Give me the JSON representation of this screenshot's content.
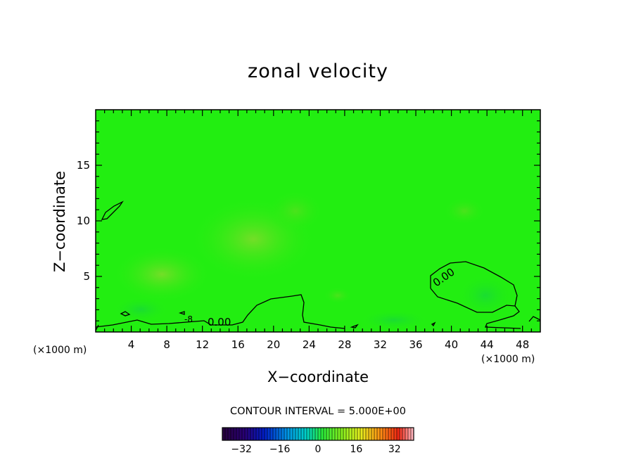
{
  "chart_data": {
    "type": "heatmap",
    "title": "zonal velocity",
    "xlabel": "X−coordinate",
    "ylabel": "Z−coordinate",
    "x_unit": "(×1000 m)",
    "xlim": [
      0,
      50
    ],
    "ylim": [
      0,
      20
    ],
    "x_ticks": [
      "4",
      "8",
      "12",
      "16",
      "20",
      "24",
      "28",
      "32",
      "36",
      "40",
      "44",
      "48"
    ],
    "y_ticks": [
      "5",
      "10",
      "15"
    ],
    "field_description_colors": {
      "background": "#22ee11",
      "light_patch": "#66e222",
      "dark_patch": "#11e611"
    },
    "contour_levels": [
      0.0
    ],
    "contour_labels": [
      "0.00",
      "0.00",
      "-8"
    ],
    "contour_interval_text": "CONTOUR INTERVAL = 5.000E+00",
    "colorbar": {
      "range": [
        -40,
        40
      ],
      "tick_labels": [
        "−32",
        "−16",
        "0",
        "16",
        "32"
      ],
      "tick_values": [
        -32,
        -16,
        0,
        16,
        32
      ]
    }
  }
}
